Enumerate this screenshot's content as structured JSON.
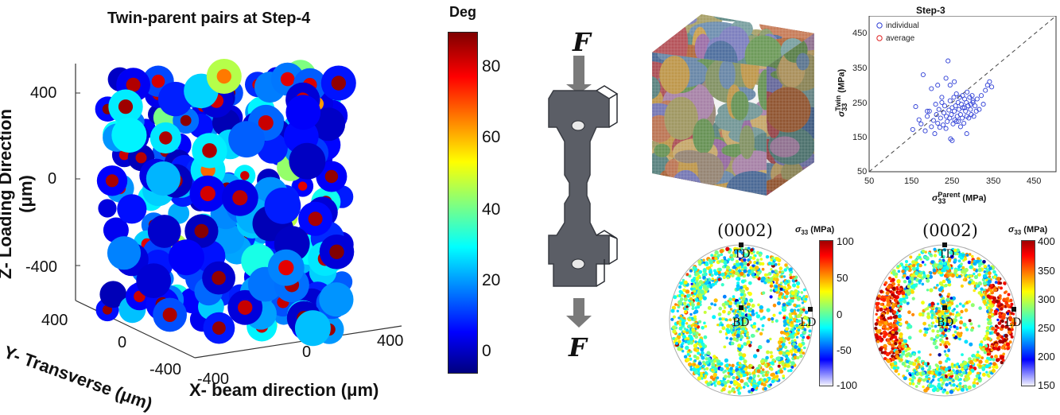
{
  "left_plot": {
    "title": "Twin-parent pairs at Step-4",
    "z_label": "Z- Loading Direction (μm)",
    "y_label": "Y- Transverse (μm)",
    "x_label": "X- beam direction (μm)",
    "z_ticks": [
      "400",
      "0",
      "-400"
    ],
    "y_ticks": [
      "400",
      "0",
      "-400"
    ],
    "x_ticks": [
      "-400",
      "0",
      "400"
    ]
  },
  "colorbar": {
    "title": "Deg",
    "ticks": [
      "80",
      "60",
      "40",
      "20",
      "0"
    ]
  },
  "specimen": {
    "force_top": "F",
    "force_bottom": "F"
  },
  "scatter": {
    "title": "Step-3",
    "legend": [
      "individual",
      "average"
    ],
    "x_ticks": [
      "50",
      "150",
      "250",
      "350",
      "450"
    ],
    "y_ticks": [
      "450",
      "350",
      "250",
      "150",
      "50"
    ],
    "xlabel_main": "σ",
    "xlabel_sup": "Parent",
    "xlabel_sub": "33",
    "xlabel_unit": "(MPa)",
    "ylabel_main": "σ",
    "ylabel_sup": "Twin",
    "ylabel_sub": "33",
    "ylabel_unit": "(MPa)"
  },
  "pole_figures": [
    {
      "title": "(0002)",
      "dirs": [
        "TD",
        "BD",
        "LD"
      ],
      "cb_label": "σ33 (MPa)",
      "cb_sym": "σ",
      "cb_sub": "33",
      "cb_unit": "(MPa)",
      "cb_ticks": [
        "100",
        "50",
        "0",
        "-50",
        "-100"
      ]
    },
    {
      "title": "(0002)",
      "dirs": [
        "TD",
        "BD",
        "LD"
      ],
      "cb_label": "σ33 (MPa)",
      "cb_sym": "σ",
      "cb_sub": "33",
      "cb_unit": "(MPa)",
      "cb_ticks": [
        "400",
        "350",
        "300",
        "250",
        "200",
        "150"
      ]
    }
  ],
  "chart_data": [
    {
      "type": "scatter",
      "title": "Twin-parent pairs at Step-4",
      "xlabel": "X- beam direction (μm)",
      "ylabel": "Y- Transverse (μm)",
      "zlabel": "Z- Loading Direction (μm)",
      "colorbar_label": "Deg",
      "colorbar_range": [
        0,
        90
      ],
      "xlim": [
        -500,
        500
      ],
      "ylim": [
        -500,
        500
      ],
      "zlim": [
        -500,
        500
      ]
    },
    {
      "type": "scatter",
      "title": "Step-3",
      "xlabel": "σ33 Parent (MPa)",
      "ylabel": "σ33 Twin (MPa)",
      "xlim": [
        50,
        500
      ],
      "ylim": [
        50,
        500
      ],
      "series": [
        {
          "name": "individual",
          "color": "#2f3fd6",
          "x": [
            155,
            162,
            170,
            175,
            180,
            185,
            190,
            195,
            200,
            205,
            208,
            210,
            212,
            215,
            218,
            220,
            222,
            225,
            228,
            230,
            232,
            235,
            236,
            238,
            240,
            242,
            244,
            245,
            246,
            248,
            250,
            252,
            254,
            255,
            256,
            258,
            260,
            262,
            264,
            265,
            266,
            268,
            270,
            272,
            274,
            275,
            276,
            278,
            280,
            282,
            284,
            285,
            286,
            288,
            290,
            292,
            294,
            295,
            296,
            298,
            300,
            302,
            305,
            308,
            310,
            315,
            320,
            325,
            330,
            335,
            340,
            345,
            200,
            215,
            235,
            255,
            270,
            285,
            250,
            245,
            190,
            225,
            260,
            280,
            300
          ],
          "y": [
            172,
            238,
            200,
            188,
            330,
            168,
            210,
            225,
            180,
            198,
            160,
            245,
            215,
            190,
            230,
            178,
            205,
            250,
            185,
            220,
            240,
            175,
            210,
            195,
            370,
            228,
            205,
            255,
            145,
            215,
            235,
            188,
            265,
            225,
            200,
            240,
            275,
            210,
            250,
            195,
            230,
            265,
            215,
            245,
            205,
            270,
            235,
            190,
            260,
            225,
            250,
            210,
            280,
            240,
            205,
            265,
            230,
            245,
            215,
            270,
            255,
            210,
            240,
            225,
            260,
            230,
            270,
            245,
            285,
            300,
            310,
            295,
            290,
            300,
            320,
            310,
            180,
            160,
            140,
            300,
            225,
            265,
            195,
            235,
            250
          ]
        },
        {
          "name": "average",
          "color": "#e02020",
          "x": [],
          "y": []
        }
      ]
    },
    {
      "type": "scatter",
      "title": "(0002)",
      "colorbar_label": "σ33 (MPa)",
      "colorbar_range": [
        -100,
        100
      ]
    },
    {
      "type": "scatter",
      "title": "(0002)",
      "colorbar_label": "σ33 (MPa)",
      "colorbar_range": [
        150,
        400
      ]
    }
  ],
  "colors": {
    "jet_dark_blue": "#00007f",
    "jet_blue": "#0000ff",
    "jet_cyan": "#00ffff",
    "jet_yellow": "#ffff00",
    "jet_red": "#ff0000",
    "jet_dark_red": "#7f0000",
    "specimen_gray": "#5b5e66",
    "arrow_gray": "#7a7a7a"
  }
}
